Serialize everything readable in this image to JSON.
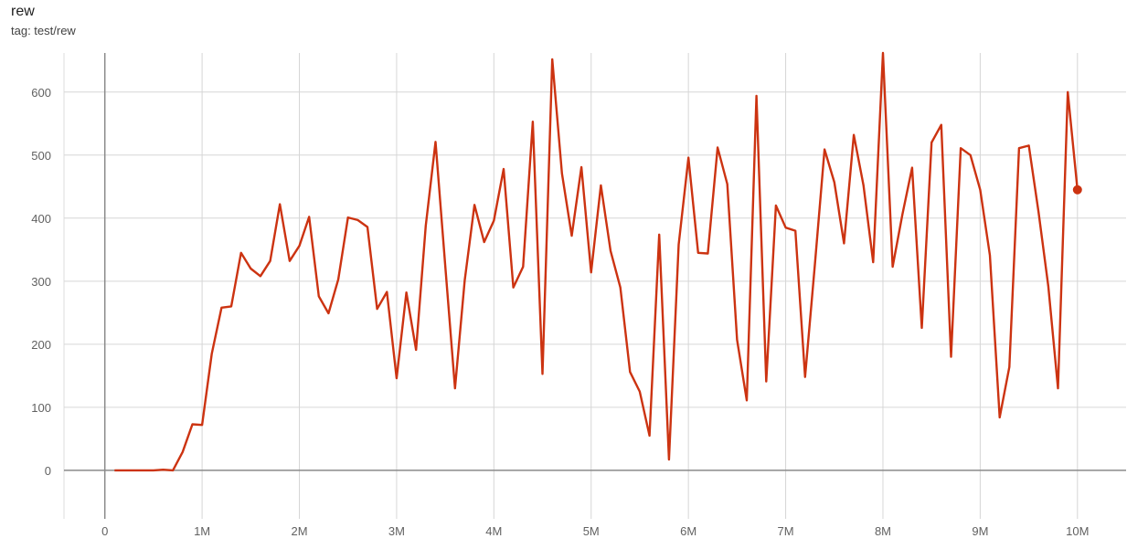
{
  "header": {
    "title": "rew",
    "tag": "tag: test/rew"
  },
  "chart_data": {
    "type": "line",
    "title": "rew",
    "xlabel": "",
    "ylabel": "",
    "xlim": [
      -0.42,
      10.5
    ],
    "ylim": [
      -77,
      662
    ],
    "grid": true,
    "x_unit": "M",
    "xticks": [
      0,
      1,
      2,
      3,
      4,
      5,
      6,
      7,
      8,
      9,
      10
    ],
    "xtick_labels": [
      "0",
      "1M",
      "2M",
      "3M",
      "4M",
      "5M",
      "6M",
      "7M",
      "8M",
      "9M",
      "10M"
    ],
    "yticks": [
      0,
      100,
      200,
      300,
      400,
      500,
      600
    ],
    "ytick_labels": [
      "0",
      "100",
      "200",
      "300",
      "400",
      "500",
      "600"
    ],
    "color": "#cc3311",
    "series": [
      {
        "x_step_millions": [
          0.1,
          0.2,
          0.3,
          0.4,
          0.5,
          0.6,
          0.7,
          0.8,
          0.9,
          1.0,
          1.1,
          1.2,
          1.3,
          1.4,
          1.5,
          1.6,
          1.7,
          1.8,
          1.9,
          2.0,
          2.1,
          2.2,
          2.3,
          2.4,
          2.5,
          2.6,
          2.7,
          2.8,
          2.9,
          3.0,
          3.1,
          3.2,
          3.3,
          3.4,
          3.5,
          3.6,
          3.7,
          3.8,
          3.9,
          4.0,
          4.1,
          4.2,
          4.3,
          4.4,
          4.5,
          4.6,
          4.7,
          4.8,
          4.9,
          5.0,
          5.1,
          5.2,
          5.3,
          5.4,
          5.5,
          5.6,
          5.7,
          5.8,
          5.9,
          6.0,
          6.1,
          6.2,
          6.3,
          6.4,
          6.5,
          6.6,
          6.7,
          6.8,
          6.9,
          7.0,
          7.1,
          7.2,
          7.3,
          7.4,
          7.5,
          7.6,
          7.7,
          7.8,
          7.9,
          8.0,
          8.1,
          8.2,
          8.3,
          8.4,
          8.5,
          8.6,
          8.7,
          8.8,
          8.9,
          9.0,
          9.1,
          9.2,
          9.3,
          9.4,
          9.5,
          9.6,
          9.7,
          9.8,
          9.9,
          10.0
        ],
        "values": [
          0,
          0,
          0,
          0,
          0,
          1,
          0,
          29,
          73,
          72,
          185,
          258,
          260,
          345,
          320,
          308,
          332,
          422,
          332,
          356,
          402,
          276,
          249,
          303,
          401,
          397,
          386,
          256,
          283,
          146,
          282,
          191,
          388,
          521,
          325,
          130,
          301,
          421,
          362,
          396,
          478,
          290,
          323,
          553,
          153,
          652,
          471,
          372,
          481,
          314,
          452,
          348,
          290,
          156,
          125,
          55,
          374,
          17,
          358,
          496,
          345,
          344,
          512,
          454,
          207,
          111,
          594,
          141,
          420,
          385,
          380,
          148,
          326,
          509,
          457,
          360,
          532,
          452,
          330,
          663,
          323,
          406,
          480,
          226,
          520,
          548,
          180,
          511,
          500,
          445,
          341,
          84,
          164,
          511,
          515,
          410,
          292,
          130,
          600,
          445
        ]
      }
    ]
  }
}
